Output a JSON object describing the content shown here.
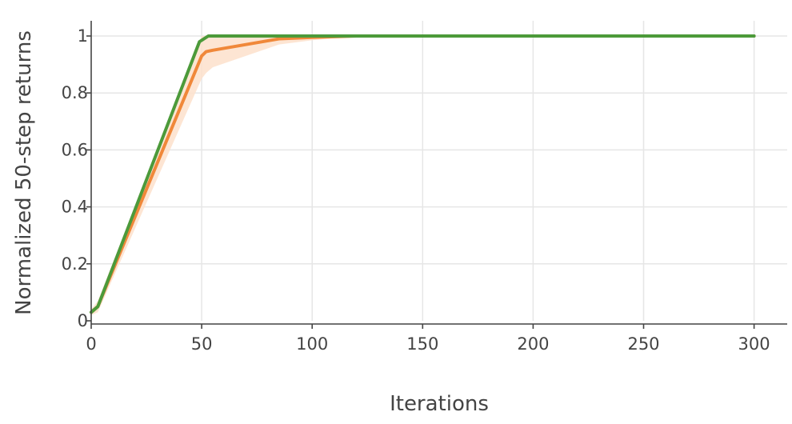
{
  "chart_data": {
    "type": "line",
    "title": "",
    "xlabel": "Iterations",
    "ylabel": "Normalized 50-step returns",
    "xlim": [
      0,
      315
    ],
    "ylim": [
      0,
      1.03
    ],
    "grid": true,
    "x_ticks": [
      0,
      50,
      100,
      150,
      200,
      250,
      300
    ],
    "y_ticks": [
      0,
      0.2,
      0.4,
      0.6,
      0.8,
      1
    ],
    "y_tick_labels": [
      "0",
      "0.2",
      "0.4",
      "0.6",
      "0.8",
      "1"
    ],
    "x_tick_labels": [
      "0",
      "50",
      "100",
      "150",
      "200",
      "250",
      "300"
    ],
    "series": [
      {
        "color": "#f0883a",
        "band_color": "#fde0cb",
        "x": [
          0,
          3,
          50,
          52,
          55,
          85,
          100,
          120,
          150,
          300
        ],
        "y": [
          0.03,
          0.05,
          0.93,
          0.945,
          0.95,
          0.99,
          0.995,
          1.0,
          1.0,
          1.0
        ],
        "upper": [
          0.04,
          0.07,
          1.0,
          1.0,
          1.0,
          1.0,
          1.0,
          1.0,
          1.0,
          1.0
        ],
        "lower": [
          0.02,
          0.03,
          0.85,
          0.87,
          0.89,
          0.97,
          0.985,
          1.0,
          1.0,
          1.0
        ]
      },
      {
        "color": "#4c9a3a",
        "x": [
          0,
          3,
          49,
          53,
          300
        ],
        "y": [
          0.03,
          0.05,
          0.98,
          1.0,
          1.0
        ]
      }
    ]
  }
}
